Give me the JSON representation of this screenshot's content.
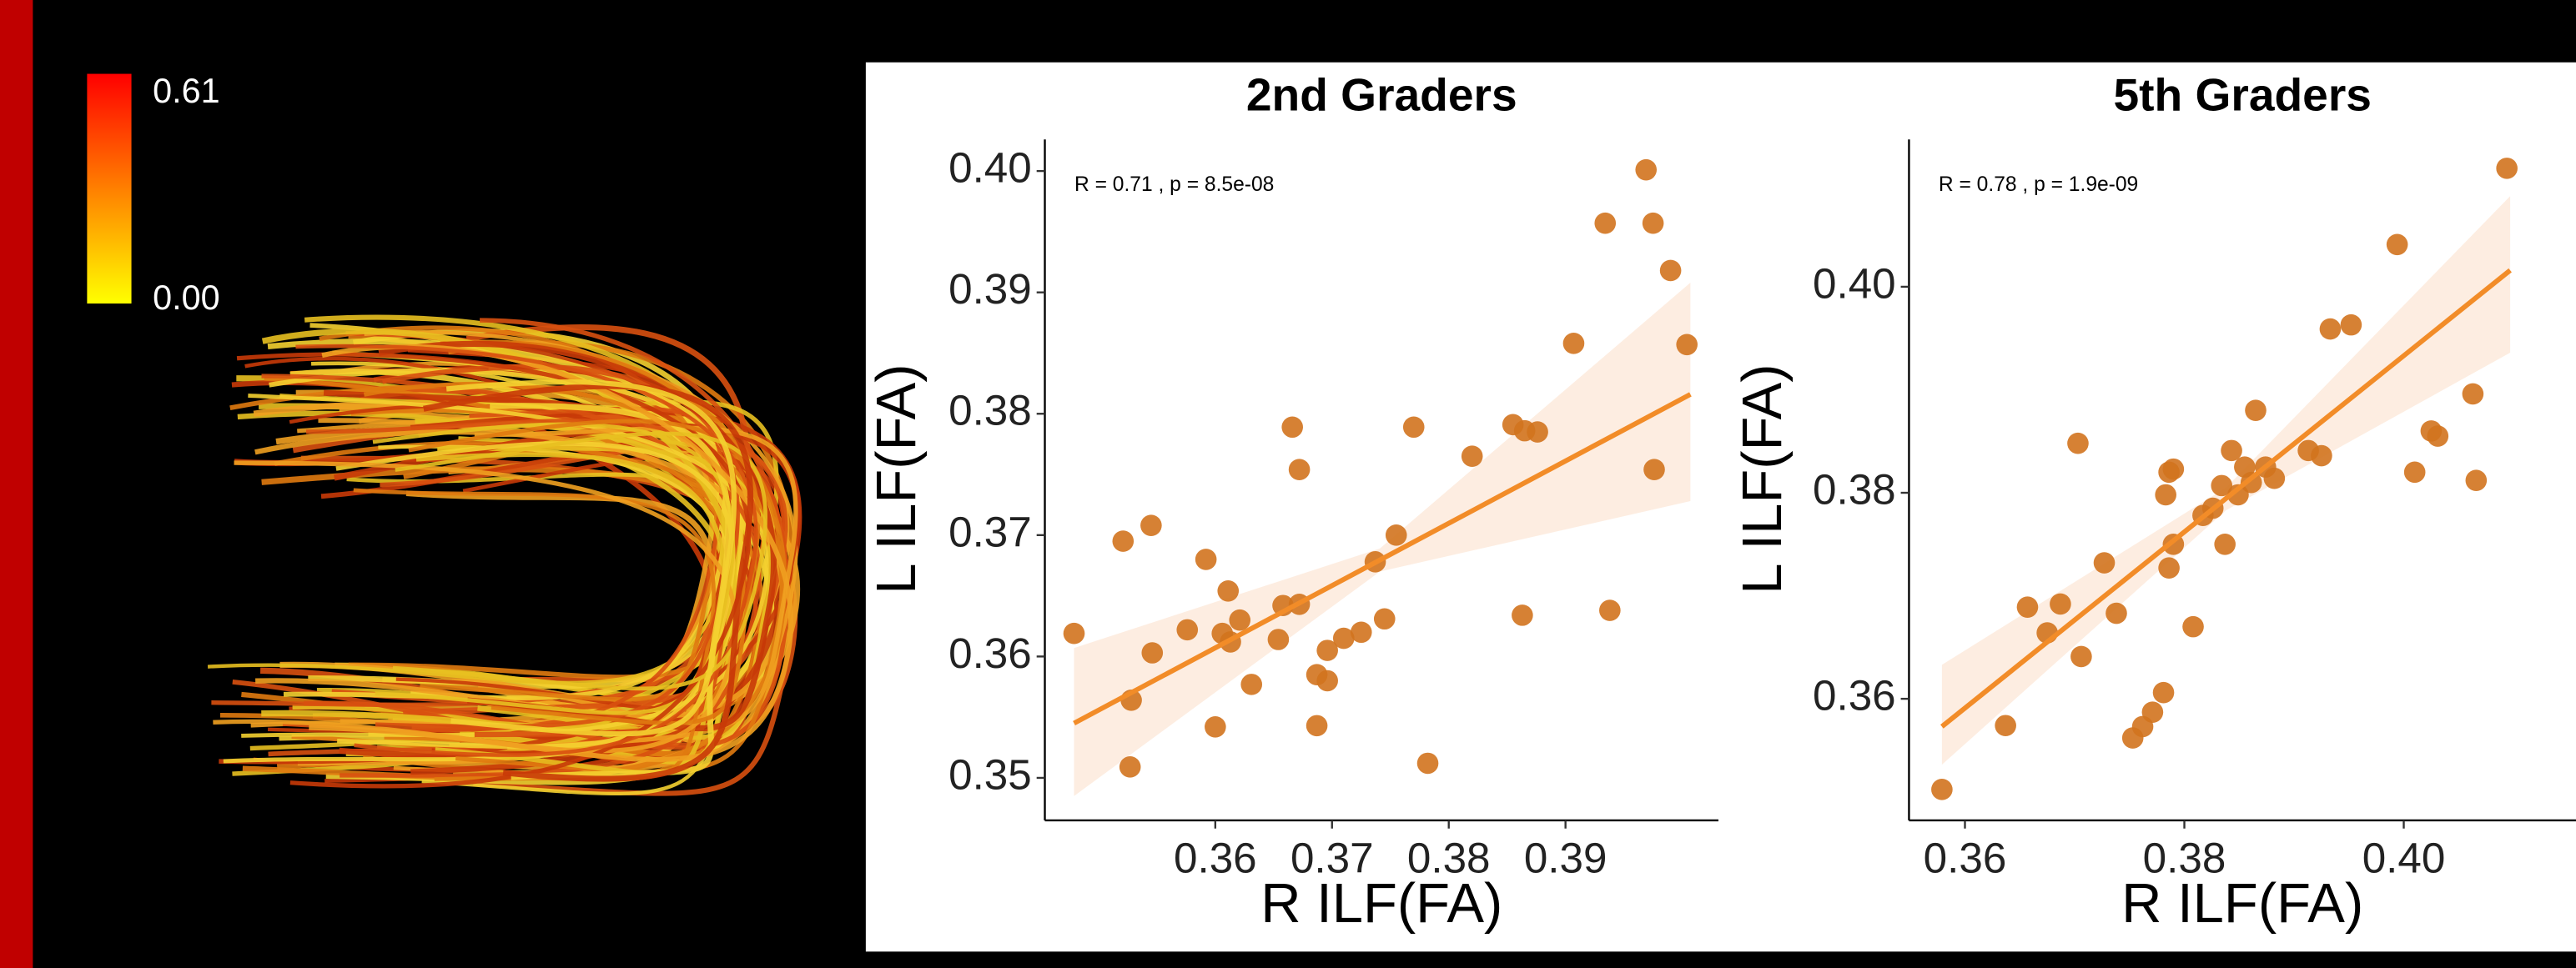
{
  "colorbar": {
    "ticks": [
      {
        "value": 0,
        "label": "0.00"
      },
      0.61
    ],
    "lim": [
      0,
      0.61
    ],
    "colors": [
      "#ffff00",
      "#ff0000"
    ]
  },
  "chart_data": [
    {
      "type": "scatter",
      "title": "2nd Graders",
      "x_label": "R ILF(FA)",
      "y_label": "L ILF(FA)",
      "annotation": "R = 0.71 , p = 8.5e-08",
      "color": "#d2731e",
      "x": [
        0.3479,
        0.3521,
        0.3545,
        0.3546,
        0.3528,
        0.3527,
        0.3576,
        0.3592,
        0.36,
        0.3606,
        0.3611,
        0.3613,
        0.3621,
        0.3631,
        0.3654,
        0.3658,
        0.3666,
        0.3672,
        0.3672,
        0.3687,
        0.3687,
        0.3696,
        0.3696,
        0.371,
        0.3725,
        0.3737,
        0.3745,
        0.3755,
        0.377,
        0.3782,
        0.382,
        0.3855,
        0.3865,
        0.3876,
        0.3863,
        0.3907,
        0.3934,
        0.3938,
        0.3969,
        0.3975,
        0.3976,
        0.399,
        0.4004
      ],
      "values": [
        0.3619,
        0.3695,
        0.3708,
        0.3603,
        0.3564,
        0.3509,
        0.3622,
        0.368,
        0.3542,
        0.3619,
        0.3654,
        0.3612,
        0.363,
        0.3577,
        0.3614,
        0.3642,
        0.3789,
        0.3754,
        0.3643,
        0.3543,
        0.3585,
        0.358,
        0.3605,
        0.3615,
        0.362,
        0.3678,
        0.3631,
        0.37,
        0.3789,
        0.3512,
        0.3765,
        0.3791,
        0.3786,
        0.3785,
        0.3634,
        0.3858,
        0.3957,
        0.3638,
        0.4001,
        0.3957,
        0.3754,
        0.3918,
        0.3857
      ],
      "fit": {
        "color": "#f28c28",
        "x": [
          0.3479,
          0.4007
        ],
        "y": [
          0.3545,
          0.3816
        ]
      },
      "band": {
        "color": "#fde9d9",
        "x": [
          0.3479,
          0.3741,
          0.4007
        ],
        "lower": [
          0.3485,
          0.367,
          0.3728
        ],
        "upper": [
          0.3607,
          0.3689,
          0.3908
        ]
      },
      "xlim": [
        0.3454,
        0.4031
      ],
      "ylim": [
        0.3465,
        0.4026
      ],
      "xticks": [
        0.36,
        0.37,
        0.38,
        0.39
      ],
      "yticks": [
        0.35,
        0.36,
        0.37,
        0.38,
        0.39,
        {
          "value": 0.4,
          "label": "0.40"
        }
      ]
    },
    {
      "type": "scatter",
      "title": "5th Graders",
      "x_label": "R ILF(FA)",
      "y_label": "L ILF(FA)",
      "annotation": "R = 0.78 , p = 1.9e-09",
      "color": "#d2731e",
      "x": [
        0.3579,
        0.3637,
        0.3657,
        0.3675,
        0.3687,
        0.3703,
        0.3706,
        0.3727,
        0.3738,
        0.3753,
        0.3762,
        0.3771,
        0.3781,
        0.3783,
        0.3786,
        0.379,
        0.3786,
        0.379,
        0.3808,
        0.3817,
        0.3826,
        0.3834,
        0.3837,
        0.3843,
        0.3849,
        0.3855,
        0.3861,
        0.3865,
        0.3874,
        0.3882,
        0.3913,
        0.3925,
        0.3933,
        0.3952,
        0.3994,
        0.401,
        0.4025,
        0.4031,
        0.4063,
        0.4066,
        0.4094
      ],
      "values": [
        0.3512,
        0.3574,
        0.3689,
        0.3664,
        0.3692,
        0.3848,
        0.3641,
        0.3732,
        0.3683,
        0.3562,
        0.3573,
        0.3587,
        0.3606,
        0.3798,
        0.382,
        0.3823,
        0.3727,
        0.375,
        0.367,
        0.3778,
        0.3785,
        0.3807,
        0.375,
        0.3841,
        0.3798,
        0.3825,
        0.381,
        0.388,
        0.3825,
        0.3814,
        0.3841,
        0.3836,
        0.3959,
        0.3963,
        0.4041,
        0.382,
        0.386,
        0.3855,
        0.3896,
        0.3812,
        0.4115
      ],
      "fit": {
        "color": "#f28c28",
        "x": [
          0.3579,
          0.4097
        ],
        "y": [
          0.3573,
          0.4016
        ]
      },
      "band": {
        "color": "#fde9d9",
        "x": [
          0.3579,
          0.3838,
          0.4097
        ],
        "lower": [
          0.3536,
          0.3783,
          0.3936
        ],
        "upper": [
          0.3633,
          0.3805,
          0.4088
        ]
      },
      "xlim": [
        0.3549,
        0.4157
      ],
      "ylim": [
        0.3482,
        0.4143
      ],
      "xticks": [
        0.36,
        0.38,
        {
          "value": 0.4,
          "label": "0.40"
        }
      ],
      "yticks": [
        0.36,
        0.38,
        {
          "value": 0.4,
          "label": "0.40"
        }
      ]
    }
  ]
}
